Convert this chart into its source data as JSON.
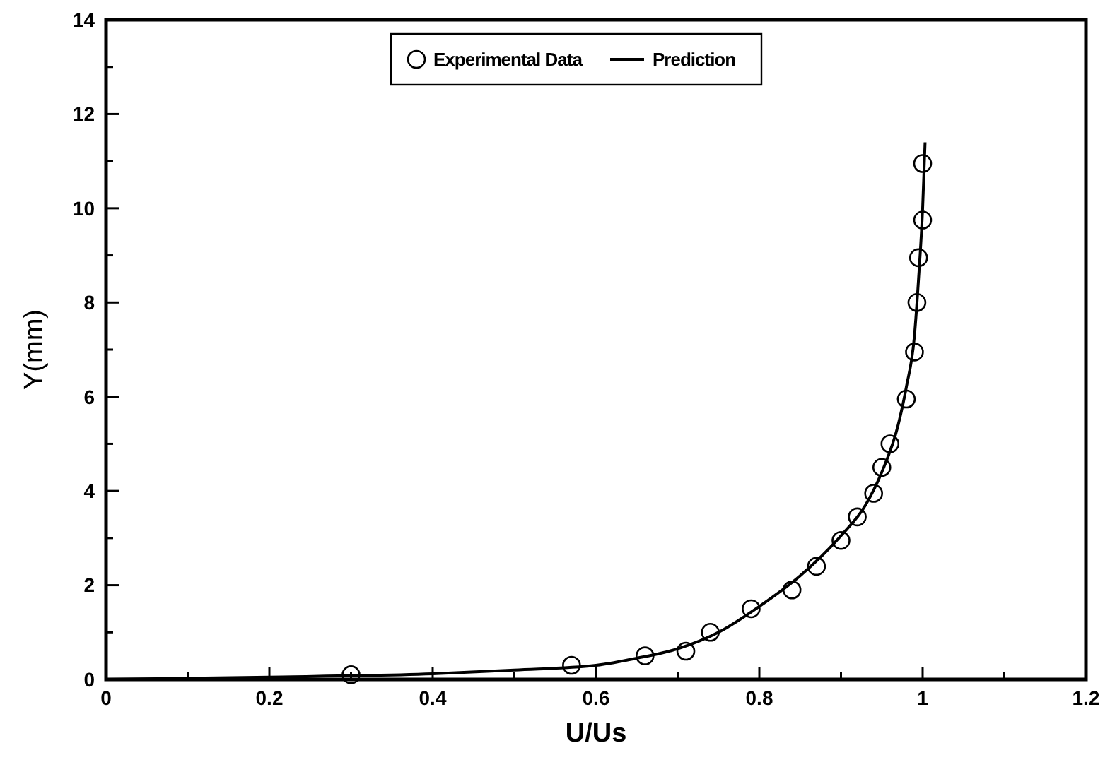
{
  "chart_data": {
    "type": "scatter",
    "xlabel": "U/Us",
    "ylabel": "Y(mm)",
    "xlim": [
      0,
      1.2
    ],
    "ylim": [
      0,
      14
    ],
    "xticks": [
      0,
      {
        "value": 0.1,
        "label": null
      },
      0.2,
      {
        "value": 0.3,
        "label": null
      },
      0.4,
      {
        "value": 0.5,
        "label": null
      },
      0.6,
      {
        "value": 0.7,
        "label": null
      },
      0.8,
      {
        "value": 0.9,
        "label": null
      },
      1,
      {
        "value": 1.1,
        "label": null
      },
      1.2
    ],
    "yticks": [
      0,
      {
        "value": 1,
        "label": null
      },
      2,
      {
        "value": 3,
        "label": null
      },
      4,
      {
        "value": 5,
        "label": null
      },
      6,
      {
        "value": 7,
        "label": null
      },
      8,
      {
        "value": 9,
        "label": null
      },
      10,
      {
        "value": 11,
        "label": null
      },
      12,
      {
        "value": 13,
        "label": null
      },
      14
    ],
    "grid": false,
    "legend": "top",
    "series": [
      {
        "name": "Experimental Data",
        "marker": "circle",
        "color": "#000000",
        "x": [
          0.3,
          0.57,
          0.66,
          0.71,
          0.74,
          0.79,
          0.84,
          0.87,
          0.9,
          0.92,
          0.94,
          0.95,
          0.96,
          0.98,
          0.99,
          0.993,
          0.995,
          1.0,
          1.0
        ],
        "values": [
          0.1,
          0.3,
          0.5,
          0.6,
          1.0,
          1.5,
          1.9,
          2.4,
          2.95,
          3.45,
          3.95,
          4.5,
          5.0,
          5.95,
          6.95,
          8.0,
          8.95,
          9.75,
          10.95
        ]
      },
      {
        "name": "Prediction",
        "type": "line",
        "line_style": "solid",
        "color": "#000000",
        "x": [
          0,
          0.2,
          0.4,
          0.5,
          0.6,
          0.65,
          0.7,
          0.75,
          0.8,
          0.85,
          0.9,
          0.93,
          0.95,
          0.97,
          0.98,
          0.99,
          0.995,
          1.0,
          1.003
        ],
        "values": [
          0,
          0.05,
          0.12,
          0.2,
          0.3,
          0.45,
          0.65,
          1.0,
          1.55,
          2.2,
          3.05,
          3.7,
          4.4,
          5.4,
          6.2,
          7.3,
          8.5,
          10,
          11.4
        ]
      }
    ]
  }
}
